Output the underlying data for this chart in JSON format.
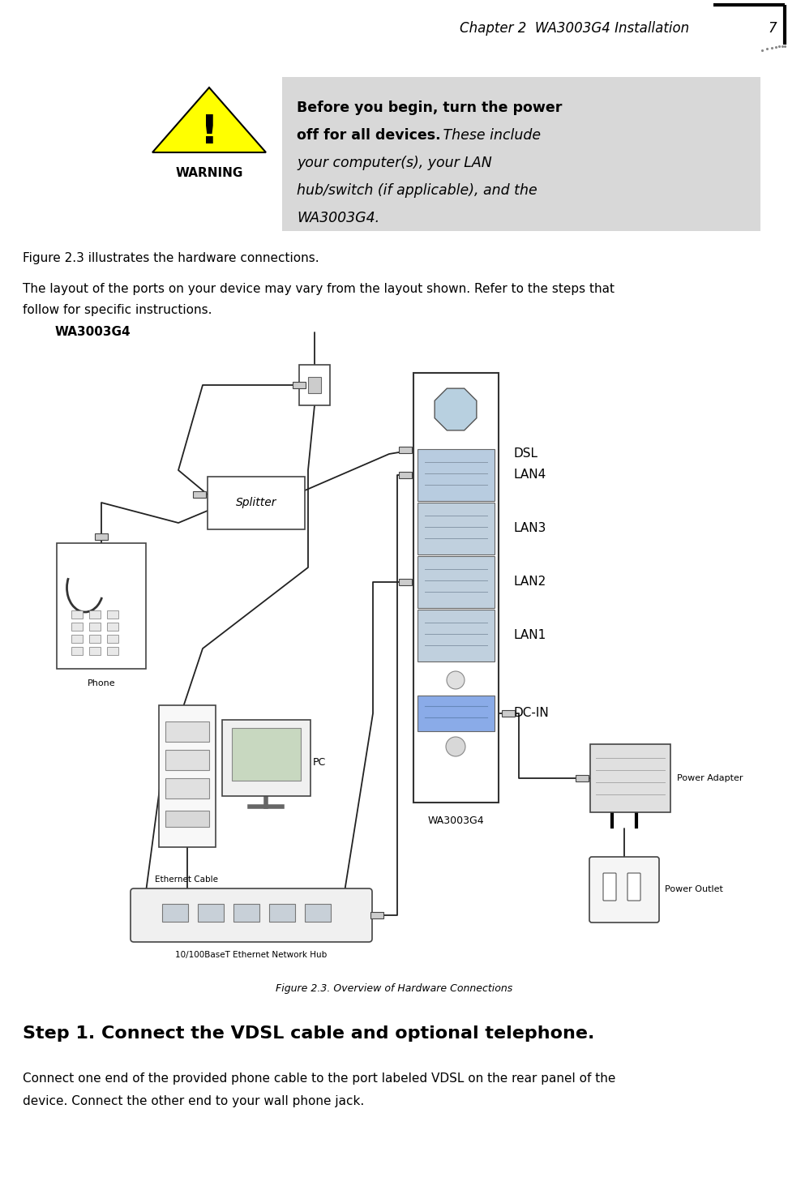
{
  "header_text": "Chapter 2  WA3003G4 Installation",
  "header_page": "7",
  "warning_bold_line1": "Before you begin, turn the power",
  "warning_bold_line2": "off for all devices.",
  "warning_italic_rest_line2": " These include",
  "warning_italic_line3": "your computer(s), your LAN",
  "warning_italic_line4": "hub/switch (if applicable), and the",
  "warning_italic_line5": "WA3003G4.",
  "warning_label": "WARNING",
  "warning_box_color": "#d8d8d8",
  "warning_triangle_color": "#ffff00",
  "figure_label": "WA3003G4",
  "figure_caption": "Figure 2.3. Overview of Hardware Connections",
  "dsl_labels": [
    "DSL",
    "LAN4",
    "LAN3",
    "LAN2",
    "LAN1",
    "DC-IN"
  ],
  "step1_heading": "Step 1. Connect the VDSL cable and optional telephone.",
  "step1_body_line1": "Connect one end of the provided phone cable to the port labeled VDSL on the rear panel of the",
  "step1_body_line2": "device. Connect the other end to your wall phone jack.",
  "para1": "Figure 2.3 illustrates the hardware connections.",
  "para2_line1": "The layout of the ports on your device may vary from the layout shown. Refer to the steps that",
  "para2_line2": "follow for specific instructions.",
  "background": "#ffffff",
  "text_color": "#000000"
}
